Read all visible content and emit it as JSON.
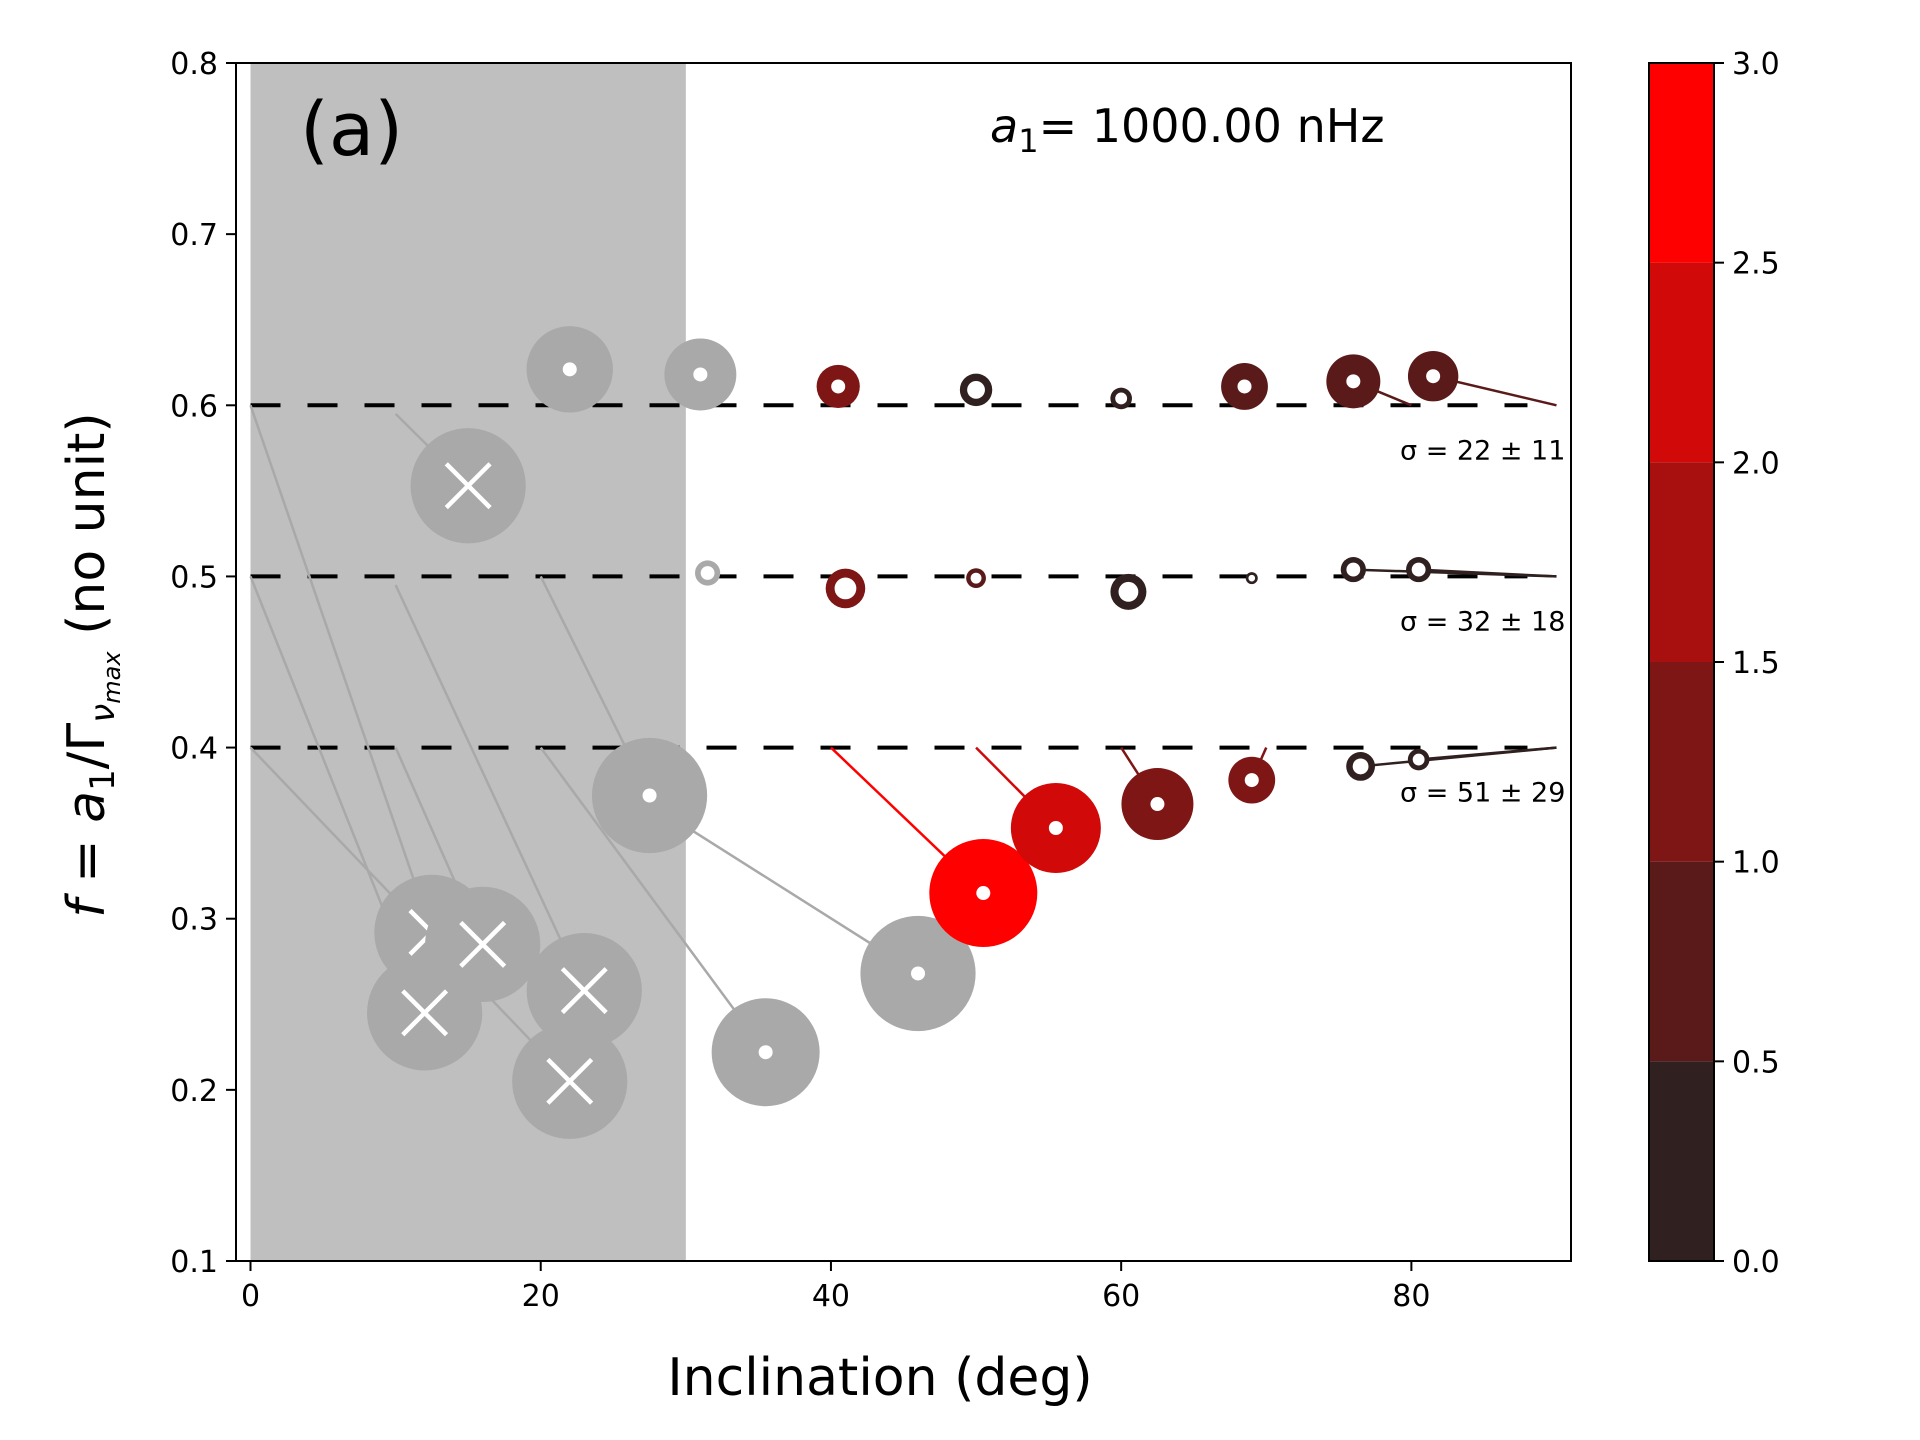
{
  "chart_data": {
    "type": "scatter",
    "panel_label": "(a)",
    "annotation_text": "a",
    "annotation_subscript": "1",
    "annotation_value": "= 1000.00 nHz",
    "xlabel": "Inclination (deg)",
    "ylabel_parts": {
      "prefix": "f = a",
      "sub1": "1",
      "mid": "/Γ",
      "sub2": "ν",
      "sub3": "max",
      "suffix": "  (no unit)"
    },
    "xlim": [
      -1,
      91
    ],
    "ylim": [
      0.1,
      0.8
    ],
    "x_ticks": [
      "0",
      "20",
      "40",
      "60",
      "80"
    ],
    "y_ticks": [
      "0.1",
      "0.2",
      "0.3",
      "0.4",
      "0.5",
      "0.6",
      "0.7",
      "0.8"
    ],
    "excluded_region": [
      0,
      30
    ],
    "reference_levels": [
      0.4,
      0.5,
      0.6
    ],
    "sigma_labels": [
      {
        "level": 0.6,
        "text": "σ = 22 ± 11"
      },
      {
        "level": 0.5,
        "text": "σ = 32 ± 18"
      },
      {
        "level": 0.4,
        "text": "σ = 51 ± 29"
      }
    ],
    "colorbar": {
      "ticks": [
        "0.0",
        "0.5",
        "1.0",
        "1.5",
        "2.0",
        "2.5",
        "3.0"
      ],
      "range": [
        0,
        3
      ],
      "colors": [
        "#302020",
        "#5a1a1a",
        "#7e1616",
        "#a81010",
        "#d20909",
        "#ff0000"
      ]
    },
    "points": [
      {
        "x": 12.5,
        "y": 0.292,
        "size": 3.2,
        "rejected": true,
        "src": [
          0,
          0.6
        ]
      },
      {
        "x": 12.0,
        "y": 0.245,
        "size": 3.2,
        "rejected": true,
        "src": [
          0,
          0.5
        ]
      },
      {
        "x": 16.0,
        "y": 0.285,
        "size": 3.2,
        "rejected": true,
        "src": [
          10,
          0.4
        ]
      },
      {
        "x": 15.0,
        "y": 0.553,
        "size": 3.2,
        "rejected": true,
        "src": [
          10,
          0.595
        ]
      },
      {
        "x": 23.0,
        "y": 0.258,
        "size": 3.2,
        "rejected": true,
        "src": [
          10,
          0.495
        ]
      },
      {
        "x": 22.0,
        "y": 0.205,
        "size": 3.2,
        "rejected": true,
        "src": [
          0,
          0.4
        ]
      },
      {
        "x": 22.0,
        "y": 0.621,
        "size": 2.4,
        "rejected": false,
        "src": null
      },
      {
        "x": 27.5,
        "y": 0.372,
        "size": 3.2,
        "rejected": false,
        "src": [
          20,
          0.5
        ]
      },
      {
        "x": 35.5,
        "y": 0.222,
        "size": 3.0,
        "rejected": false,
        "src": [
          20,
          0.4
        ]
      },
      {
        "x": 46.0,
        "y": 0.268,
        "size": 3.2,
        "rejected": false,
        "src": [
          27,
          0.37
        ]
      },
      {
        "x": 31.0,
        "y": 0.618,
        "size": 2.0,
        "rejected": false,
        "src": null
      },
      {
        "x": 31.5,
        "y": 0.502,
        "size": 0.7,
        "rejected": false,
        "src": null
      },
      {
        "x": 50.5,
        "y": 0.315,
        "size": 3.0,
        "src": [
          40,
          0.4
        ],
        "z": 3.0
      },
      {
        "x": 55.5,
        "y": 0.353,
        "size": 2.5,
        "src": [
          50,
          0.4
        ],
        "z": 2.3
      },
      {
        "x": 62.5,
        "y": 0.367,
        "size": 2.0,
        "src": [
          60,
          0.4
        ],
        "z": 1.3
      },
      {
        "x": 69.0,
        "y": 0.381,
        "size": 1.3,
        "src": [
          70,
          0.4
        ],
        "z": 1.1
      },
      {
        "x": 76.5,
        "y": 0.389,
        "size": 0.8,
        "src": [
          90,
          0.4
        ],
        "z": 0.3
      },
      {
        "x": 80.5,
        "y": 0.393,
        "size": 0.6,
        "src": [
          90,
          0.4
        ],
        "z": 0.2
      },
      {
        "x": 41.0,
        "y": 0.493,
        "size": 1.1,
        "src": null,
        "z": 1.1
      },
      {
        "x": 50.0,
        "y": 0.499,
        "size": 0.55,
        "src": null,
        "z": 0.7
      },
      {
        "x": 60.5,
        "y": 0.491,
        "size": 1.0,
        "src": null,
        "z": 0.3
      },
      {
        "x": 69.0,
        "y": 0.499,
        "size": 0.15,
        "src": null,
        "z": 0.3
      },
      {
        "x": 76.0,
        "y": 0.504,
        "size": 0.7,
        "src": [
          90,
          0.5
        ],
        "z": 0.3
      },
      {
        "x": 80.5,
        "y": 0.504,
        "size": 0.7,
        "src": [
          90,
          0.5
        ],
        "z": 0.3
      },
      {
        "x": 40.5,
        "y": 0.611,
        "size": 1.2,
        "src": null,
        "z": 1.3
      },
      {
        "x": 50.0,
        "y": 0.609,
        "size": 0.9,
        "src": null,
        "z": 0.2
      },
      {
        "x": 60.0,
        "y": 0.604,
        "size": 0.6,
        "src": null,
        "z": 0.3
      },
      {
        "x": 68.5,
        "y": 0.611,
        "size": 1.3,
        "src": null,
        "z": 1.0
      },
      {
        "x": 76.0,
        "y": 0.614,
        "size": 1.5,
        "src": [
          80,
          0.6
        ],
        "z": 1.0
      },
      {
        "x": 81.5,
        "y": 0.617,
        "size": 1.4,
        "src": [
          90,
          0.6
        ],
        "z": 0.8
      }
    ]
  }
}
